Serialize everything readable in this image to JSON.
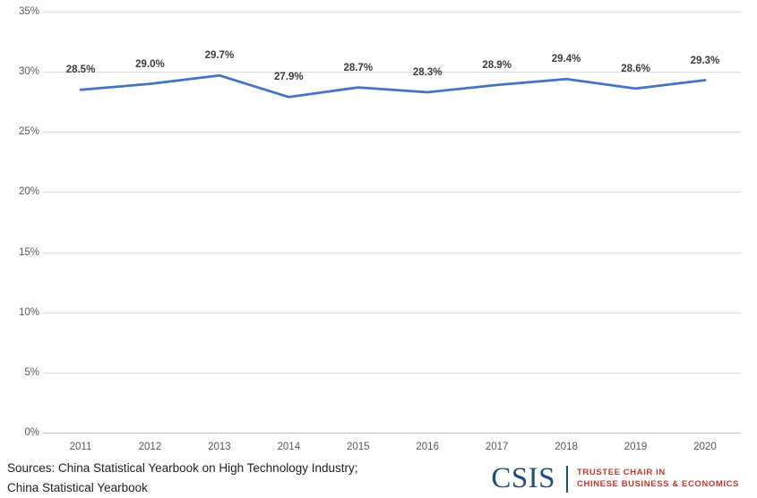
{
  "chart_data": {
    "type": "line",
    "title": "",
    "categories": [
      "2011",
      "2012",
      "2013",
      "2014",
      "2015",
      "2016",
      "2017",
      "2018",
      "2019",
      "2020"
    ],
    "values": [
      28.5,
      29.0,
      29.7,
      27.9,
      28.7,
      28.3,
      28.9,
      29.4,
      28.6,
      29.3
    ],
    "point_labels": [
      "28.5%",
      "29.0%",
      "29.7%",
      "27.9%",
      "28.7%",
      "28.3%",
      "28.9%",
      "29.4%",
      "28.6%",
      "29.3%"
    ],
    "y_ticks": [
      35,
      30,
      25,
      20,
      15,
      10,
      5,
      0
    ],
    "y_tick_labels": [
      "35%",
      "30%",
      "25%",
      "20%",
      "15%",
      "10%",
      "5%",
      "0%"
    ],
    "ylim": [
      0,
      35
    ],
    "grid": true,
    "legend": "none",
    "line_color": "#4472C4",
    "gridline_color": "#d9d9d9"
  },
  "footer": {
    "sources_line1": "Sources: China Statistical Yearbook on High Technology Industry;",
    "sources_line2": "China Statistical Yearbook"
  },
  "logo": {
    "wordmark": "CSIS",
    "tagline_line1": "TRUSTEE CHAIR IN",
    "tagline_line2": "CHINESE BUSINESS & ECONOMICS",
    "navy": "#1f4e79",
    "red": "#c13b31"
  }
}
